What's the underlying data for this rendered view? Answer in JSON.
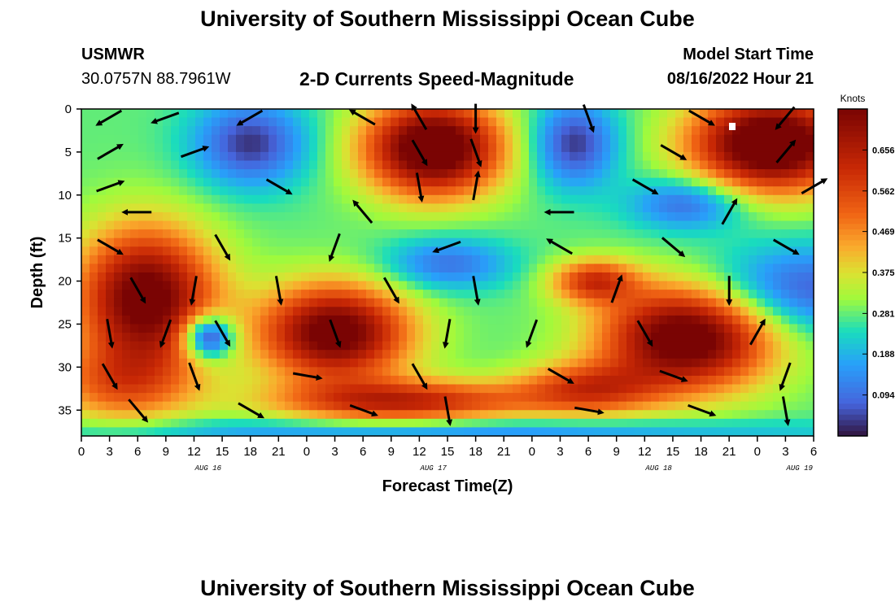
{
  "header": {
    "title": "University of Southern Mississippi Ocean Cube",
    "station": "USMWR",
    "coordinates": "30.0757N  88.7961W",
    "subtitle": "2-D Currents Speed-Magnitude",
    "model_start_label": "Model Start Time",
    "model_start_value": "08/16/2022 Hour 21"
  },
  "footer": {
    "title": "University of Southern Mississippi Ocean Cube"
  },
  "chart_data": {
    "type": "heatmap",
    "title": "2-D Currents Speed-Magnitude",
    "xlabel": "Forecast Time(Z)",
    "ylabel": "Depth (ft)",
    "x_ticks": [
      "0",
      "3",
      "6",
      "9",
      "12",
      "15",
      "18",
      "21",
      "0",
      "3",
      "6",
      "9",
      "12",
      "15",
      "18",
      "21",
      "0",
      "3",
      "6",
      "9",
      "12",
      "15",
      "18",
      "21",
      "0",
      "3",
      "6"
    ],
    "date_labels": [
      {
        "label": "AUG 16",
        "tick_index": 4.5
      },
      {
        "label": "AUG 17",
        "tick_index": 12.5
      },
      {
        "label": "AUG 18",
        "tick_index": 20.5
      },
      {
        "label": "AUG 19",
        "tick_index": 25.5
      }
    ],
    "y_ticks": [
      0,
      5,
      10,
      15,
      20,
      25,
      30,
      35
    ],
    "ylim": [
      38,
      0
    ],
    "colorbar": {
      "unit": "Knots",
      "ticks": [
        "0.094",
        "0.188",
        "0.281",
        "0.375",
        "0.469",
        "0.562",
        "0.656"
      ],
      "range": [
        0,
        0.75
      ]
    },
    "speed_blobs": [
      {
        "x": 2.3,
        "y": 22,
        "sx": 2.4,
        "sy": 8.0,
        "a": 0.52
      },
      {
        "x": 1.4,
        "y": 32,
        "sx": 2.6,
        "sy": 4.5,
        "a": 0.22
      },
      {
        "x": 4.5,
        "y": 26.5,
        "sx": 0.9,
        "sy": 2.5,
        "a": -0.38
      },
      {
        "x": 12.5,
        "y": 4.5,
        "sx": 2.4,
        "sy": 5.5,
        "a": 0.58
      },
      {
        "x": 9.0,
        "y": 26.0,
        "sx": 2.6,
        "sy": 5.5,
        "a": 0.52
      },
      {
        "x": 11.5,
        "y": 34.0,
        "sx": 4.5,
        "sy": 2.5,
        "a": 0.35
      },
      {
        "x": 24.5,
        "y": 4.0,
        "sx": 2.8,
        "sy": 5.5,
        "a": 0.6
      },
      {
        "x": 21.5,
        "y": 26.5,
        "sx": 3.0,
        "sy": 6.0,
        "a": 0.55
      },
      {
        "x": 18.0,
        "y": 32.5,
        "sx": 2.5,
        "sy": 3.0,
        "a": 0.28
      },
      {
        "x": 18.2,
        "y": 20.0,
        "sx": 1.5,
        "sy": 2.5,
        "a": 0.3
      },
      {
        "x": 6.0,
        "y": 4.0,
        "sx": 2.0,
        "sy": 5.0,
        "a": -0.25
      },
      {
        "x": 17.5,
        "y": 4.0,
        "sx": 1.5,
        "sy": 5.0,
        "a": -0.25
      },
      {
        "x": 13.0,
        "y": 18.0,
        "sx": 2.2,
        "sy": 3.0,
        "a": -0.18
      },
      {
        "x": 25.5,
        "y": 21.0,
        "sx": 3.5,
        "sy": 5.0,
        "a": -0.22
      },
      {
        "x": 21.5,
        "y": 11.0,
        "sx": 2.0,
        "sy": 3.0,
        "a": -0.2
      },
      {
        "x": 13.0,
        "y": 37.5,
        "sx": 14.0,
        "sy": 1.5,
        "a": -0.15
      }
    ],
    "speed_base": 0.28,
    "vectors_note": "direction in degrees clockwise from north (up)",
    "vectors": [
      {
        "t": 1,
        "d": 1,
        "dir": 240
      },
      {
        "t": 3,
        "d": 1,
        "dir": 250
      },
      {
        "t": 6,
        "d": 1,
        "dir": 240
      },
      {
        "t": 10,
        "d": 1,
        "dir": 300
      },
      {
        "t": 12,
        "d": 1,
        "dir": 330
      },
      {
        "t": 14,
        "d": 1,
        "dir": 180
      },
      {
        "t": 18,
        "d": 1,
        "dir": 160
      },
      {
        "t": 22,
        "d": 1,
        "dir": 120
      },
      {
        "t": 25,
        "d": 1,
        "dir": 220
      },
      {
        "t": 1,
        "d": 5,
        "dir": 60
      },
      {
        "t": 4,
        "d": 5,
        "dir": 70
      },
      {
        "t": 12,
        "d": 5,
        "dir": 150
      },
      {
        "t": 14,
        "d": 5,
        "dir": 160
      },
      {
        "t": 21,
        "d": 5,
        "dir": 120
      },
      {
        "t": 25,
        "d": 5,
        "dir": 40
      },
      {
        "t": 1,
        "d": 9,
        "dir": 70
      },
      {
        "t": 7,
        "d": 9,
        "dir": 120
      },
      {
        "t": 12,
        "d": 9,
        "dir": 170
      },
      {
        "t": 14,
        "d": 9,
        "dir": 10
      },
      {
        "t": 20,
        "d": 9,
        "dir": 120
      },
      {
        "t": 26,
        "d": 9,
        "dir": 60
      },
      {
        "t": 2,
        "d": 12,
        "dir": 270
      },
      {
        "t": 10,
        "d": 12,
        "dir": 320
      },
      {
        "t": 17,
        "d": 12,
        "dir": 270
      },
      {
        "t": 23,
        "d": 12,
        "dir": 30
      },
      {
        "t": 1,
        "d": 16,
        "dir": 120
      },
      {
        "t": 5,
        "d": 16,
        "dir": 150
      },
      {
        "t": 9,
        "d": 16,
        "dir": 200
      },
      {
        "t": 13,
        "d": 16,
        "dir": 250
      },
      {
        "t": 17,
        "d": 16,
        "dir": 300
      },
      {
        "t": 21,
        "d": 16,
        "dir": 130
      },
      {
        "t": 25,
        "d": 16,
        "dir": 120
      },
      {
        "t": 2,
        "d": 21,
        "dir": 150
      },
      {
        "t": 4,
        "d": 21,
        "dir": 190
      },
      {
        "t": 7,
        "d": 21,
        "dir": 170
      },
      {
        "t": 11,
        "d": 21,
        "dir": 150
      },
      {
        "t": 14,
        "d": 21,
        "dir": 170
      },
      {
        "t": 19,
        "d": 21,
        "dir": 20
      },
      {
        "t": 23,
        "d": 21,
        "dir": 180
      },
      {
        "t": 1,
        "d": 26,
        "dir": 170
      },
      {
        "t": 3,
        "d": 26,
        "dir": 200
      },
      {
        "t": 5,
        "d": 26,
        "dir": 150
      },
      {
        "t": 9,
        "d": 26,
        "dir": 160
      },
      {
        "t": 13,
        "d": 26,
        "dir": 190
      },
      {
        "t": 16,
        "d": 26,
        "dir": 200
      },
      {
        "t": 20,
        "d": 26,
        "dir": 150
      },
      {
        "t": 24,
        "d": 26,
        "dir": 30
      },
      {
        "t": 1,
        "d": 31,
        "dir": 150
      },
      {
        "t": 4,
        "d": 31,
        "dir": 160
      },
      {
        "t": 8,
        "d": 31,
        "dir": 100
      },
      {
        "t": 12,
        "d": 31,
        "dir": 150
      },
      {
        "t": 17,
        "d": 31,
        "dir": 120
      },
      {
        "t": 21,
        "d": 31,
        "dir": 110
      },
      {
        "t": 25,
        "d": 31,
        "dir": 200
      },
      {
        "t": 2,
        "d": 35,
        "dir": 140
      },
      {
        "t": 6,
        "d": 35,
        "dir": 120
      },
      {
        "t": 10,
        "d": 35,
        "dir": 110
      },
      {
        "t": 13,
        "d": 35,
        "dir": 170
      },
      {
        "t": 18,
        "d": 35,
        "dir": 100
      },
      {
        "t": 22,
        "d": 35,
        "dir": 110
      },
      {
        "t": 25,
        "d": 35,
        "dir": 170
      }
    ]
  }
}
